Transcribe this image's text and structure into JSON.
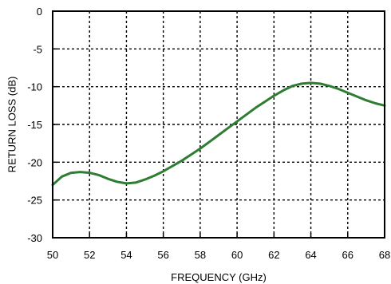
{
  "chart_data": {
    "type": "line",
    "xlabel": "FREQUENCY (GHz)",
    "ylabel": "RETURN LOSS (dB)",
    "xlim": [
      50,
      68
    ],
    "ylim": [
      -30,
      0
    ],
    "xticks": [
      50,
      52,
      54,
      56,
      58,
      60,
      62,
      64,
      66,
      68
    ],
    "yticks": [
      0,
      -5,
      -10,
      -15,
      -20,
      -25,
      -30
    ],
    "grid": true,
    "series": [
      {
        "color": "#2e7d32",
        "x": [
          50,
          50.5,
          51,
          51.5,
          52,
          52.5,
          53,
          53.5,
          54,
          54.5,
          55,
          55.5,
          56,
          56.5,
          57,
          57.5,
          58,
          58.5,
          59,
          59.5,
          60,
          60.5,
          61,
          61.5,
          62,
          62.5,
          63,
          63.5,
          64,
          64.5,
          65,
          65.5,
          66,
          66.5,
          67,
          67.5,
          68
        ],
        "y": [
          -23.0,
          -21.9,
          -21.4,
          -21.3,
          -21.4,
          -21.7,
          -22.2,
          -22.6,
          -22.8,
          -22.7,
          -22.3,
          -21.8,
          -21.2,
          -20.5,
          -19.8,
          -19.0,
          -18.2,
          -17.3,
          -16.4,
          -15.5,
          -14.6,
          -13.7,
          -12.8,
          -12.0,
          -11.2,
          -10.5,
          -9.9,
          -9.6,
          -9.5,
          -9.6,
          -9.9,
          -10.3,
          -10.8,
          -11.3,
          -11.8,
          -12.2,
          -12.5
        ]
      }
    ]
  }
}
